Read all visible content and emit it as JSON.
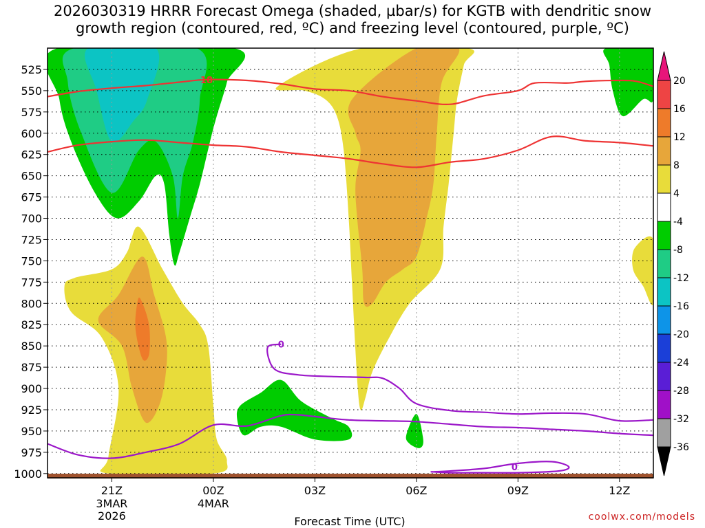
{
  "title": "2026030319 HRRR Forecast Omega (shaded, µbar/s) for KGTB with dendritic snow\ngrowth region (contoured, red, ºC) and freezing level (contoured, purple, ºC)",
  "source_text": "coolwx.com/models",
  "chart_data": {
    "type": "contour",
    "title": "2026030319 HRRR Forecast Omega (shaded, µbar/s) for KGTB with dendritic snow growth region (contoured, red, ºC) and freezing level (contoured, purple, ºC)",
    "xlabel": "Forecast Time (UTC)",
    "ylabel": "",
    "x_range_hours_from_21Z": [
      -1.9,
      16.0
    ],
    "ylim": [
      1005,
      500
    ],
    "y_ticks": [
      525,
      550,
      575,
      600,
      625,
      650,
      675,
      700,
      725,
      750,
      775,
      800,
      825,
      850,
      875,
      900,
      925,
      950,
      975,
      1000
    ],
    "x_ticks": [
      {
        "hour": 0,
        "label": "21Z",
        "sub1": "3MAR",
        "sub2": "2026"
      },
      {
        "hour": 3,
        "label": "00Z",
        "sub1": "4MAR",
        "sub2": ""
      },
      {
        "hour": 6,
        "label": "03Z",
        "sub1": "",
        "sub2": ""
      },
      {
        "hour": 9,
        "label": "06Z",
        "sub1": "",
        "sub2": ""
      },
      {
        "hour": 12,
        "label": "09Z",
        "sub1": "",
        "sub2": ""
      },
      {
        "hour": 15,
        "label": "12Z",
        "sub1": "",
        "sub2": ""
      }
    ],
    "colorbar": {
      "labels": [
        "20",
        "16",
        "12",
        "8",
        "4",
        "-4",
        "-8",
        "-12",
        "-16",
        "-20",
        "-24",
        "-28",
        "-32",
        "-36"
      ],
      "colors": [
        "#e8157a",
        "#ee4444",
        "#ee7b2a",
        "#e7a63a",
        "#e8dc3a",
        "#ffffff",
        "#00cc00",
        "#1fcc85",
        "#0cc4c4",
        "#0d94e8",
        "#1b3fd8",
        "#5a1ed6",
        "#a010c8",
        "#a0a0a0",
        "#000000"
      ]
    },
    "omega_regions": [
      {
        "name": "upper-ascent-region",
        "value": -8,
        "color": "#00cc00",
        "points": [
          [
            -1.6,
            500
          ],
          [
            3.6,
            500
          ],
          [
            3.4,
            540
          ],
          [
            3.1,
            580
          ],
          [
            2.9,
            610
          ],
          [
            2.6,
            660
          ],
          [
            2.3,
            700
          ],
          [
            2.0,
            740
          ],
          [
            1.85,
            755
          ],
          [
            1.7,
            720
          ],
          [
            1.55,
            660
          ],
          [
            1.3,
            650
          ],
          [
            0.8,
            680
          ],
          [
            0.15,
            700
          ],
          [
            -0.5,
            670
          ],
          [
            -1.2,
            610
          ],
          [
            -1.55,
            560
          ]
        ]
      },
      {
        "name": "upper-ascent-core",
        "value": -12,
        "color": "#1fcc85",
        "points": [
          [
            -1.1,
            500
          ],
          [
            2.5,
            500
          ],
          [
            2.6,
            560
          ],
          [
            2.4,
            610
          ],
          [
            2.1,
            650
          ],
          [
            1.95,
            700
          ],
          [
            1.8,
            650
          ],
          [
            1.3,
            610
          ],
          [
            0.8,
            620
          ],
          [
            0.0,
            670
          ],
          [
            -0.9,
            600
          ],
          [
            -1.3,
            540
          ]
        ]
      },
      {
        "name": "upper-ascent-max",
        "value": -16,
        "color": "#0cc4c4",
        "points": [
          [
            -0.7,
            500
          ],
          [
            1.3,
            500
          ],
          [
            1.05,
            560
          ],
          [
            0.65,
            585
          ],
          [
            0.0,
            610
          ],
          [
            -0.45,
            550
          ]
        ]
      },
      {
        "name": "lower-descent-region",
        "value": 4,
        "color": "#e8dc3a",
        "points": [
          [
            0.8,
            710
          ],
          [
            1.5,
            760
          ],
          [
            2.1,
            800
          ],
          [
            2.6,
            825
          ],
          [
            2.85,
            850
          ],
          [
            3.0,
            920
          ],
          [
            3.1,
            960
          ],
          [
            3.4,
            985
          ],
          [
            3.0,
            1000
          ],
          [
            -0.1,
            1000
          ],
          [
            -0.1,
            980
          ],
          [
            0.2,
            900
          ],
          [
            -0.3,
            840
          ],
          [
            -1.2,
            810
          ],
          [
            -1.4,
            780
          ],
          [
            -1.1,
            770
          ],
          [
            0.0,
            760
          ],
          [
            0.45,
            740
          ]
        ]
      },
      {
        "name": "lower-descent-core",
        "value": 8,
        "color": "#e7a63a",
        "points": [
          [
            0.9,
            745
          ],
          [
            1.25,
            790
          ],
          [
            1.6,
            840
          ],
          [
            1.6,
            880
          ],
          [
            1.4,
            920
          ],
          [
            1.0,
            940
          ],
          [
            0.6,
            900
          ],
          [
            0.3,
            850
          ],
          [
            -0.4,
            820
          ],
          [
            0.2,
            790
          ]
        ]
      },
      {
        "name": "lower-descent-max",
        "value": 12,
        "color": "#ee7b2a",
        "points": [
          [
            0.85,
            795
          ],
          [
            1.1,
            825
          ],
          [
            1.1,
            860
          ],
          [
            0.9,
            865
          ],
          [
            0.7,
            830
          ],
          [
            0.75,
            800
          ]
        ]
      },
      {
        "name": "mid-ascent-region",
        "value": -8,
        "color": "#00cc00",
        "points": [
          [
            3.8,
            920
          ],
          [
            4.4,
            905
          ],
          [
            5.0,
            890
          ],
          [
            5.6,
            915
          ],
          [
            6.5,
            935
          ],
          [
            7.0,
            945
          ],
          [
            7.0,
            960
          ],
          [
            6.0,
            960
          ],
          [
            5.0,
            945
          ],
          [
            4.4,
            945
          ],
          [
            3.9,
            955
          ],
          [
            3.7,
            935
          ]
        ]
      },
      {
        "name": "small-ascent-cell",
        "value": -8,
        "color": "#00cc00",
        "points": [
          [
            8.7,
            955
          ],
          [
            9.0,
            930
          ],
          [
            9.2,
            960
          ],
          [
            9.1,
            970
          ],
          [
            8.8,
            965
          ]
        ]
      },
      {
        "name": "late-descent-region",
        "value": 4,
        "color": "#e8dc3a",
        "points": [
          [
            7.4,
            500
          ],
          [
            10.5,
            500
          ],
          [
            10.4,
            520
          ],
          [
            10.2,
            560
          ],
          [
            10.1,
            600
          ],
          [
            9.95,
            660
          ],
          [
            9.8,
            710
          ],
          [
            9.7,
            760
          ],
          [
            8.8,
            800
          ],
          [
            8.2,
            840
          ],
          [
            7.7,
            880
          ],
          [
            7.5,
            910
          ],
          [
            7.35,
            925
          ],
          [
            7.25,
            890
          ],
          [
            7.1,
            780
          ],
          [
            7.0,
            700
          ],
          [
            6.85,
            620
          ],
          [
            6.65,
            580
          ],
          [
            6.3,
            560
          ],
          [
            5.7,
            550
          ],
          [
            4.9,
            545
          ]
        ]
      },
      {
        "name": "late-descent-core",
        "value": 8,
        "color": "#e7a63a",
        "points": [
          [
            9.0,
            500
          ],
          [
            10.25,
            500
          ],
          [
            9.75,
            540
          ],
          [
            9.6,
            600
          ],
          [
            9.5,
            660
          ],
          [
            9.3,
            700
          ],
          [
            9.0,
            745
          ],
          [
            8.6,
            760
          ],
          [
            8.1,
            775
          ],
          [
            7.7,
            800
          ],
          [
            7.45,
            800
          ],
          [
            7.4,
            760
          ],
          [
            7.25,
            700
          ],
          [
            7.2,
            660
          ],
          [
            7.35,
            620
          ],
          [
            7.2,
            600
          ],
          [
            7.1,
            560
          ]
        ]
      },
      {
        "name": "right-edge-ascent",
        "value": -8,
        "color": "#00cc00",
        "points": [
          [
            14.6,
            500
          ],
          [
            16.0,
            500
          ],
          [
            16.0,
            560
          ],
          [
            15.7,
            560
          ],
          [
            15.1,
            580
          ],
          [
            14.8,
            550
          ],
          [
            14.7,
            520
          ]
        ]
      },
      {
        "name": "right-edge-descent",
        "value": 4,
        "color": "#e8dc3a",
        "points": [
          [
            16.0,
            725
          ],
          [
            16.0,
            800
          ],
          [
            15.7,
            780
          ],
          [
            15.4,
            760
          ],
          [
            15.45,
            735
          ]
        ]
      }
    ],
    "isotherms": [
      {
        "name": "dendritic-upper",
        "color": "#ee3333",
        "label": "18",
        "x": [
          -1.9,
          -1.0,
          0.0,
          1.0,
          2.0,
          2.8,
          4.0,
          5.0,
          6.0,
          7.0,
          8.0,
          9.0,
          10.0,
          11.0,
          12.0,
          12.5,
          13.5,
          14.0,
          15.0,
          15.5,
          16.0
        ],
        "p": [
          557,
          551,
          547,
          544,
          540,
          537,
          538,
          542,
          548,
          550,
          557,
          562,
          566,
          556,
          550,
          541,
          541,
          539,
          538,
          539,
          545
        ]
      },
      {
        "name": "dendritic-lower",
        "color": "#ee3333",
        "label": "",
        "x": [
          -1.9,
          -1.0,
          0.0,
          1.0,
          2.0,
          3.0,
          4.0,
          5.0,
          6.0,
          7.0,
          8.0,
          9.0,
          10.0,
          11.0,
          12.0,
          13.0,
          14.0,
          15.0,
          16.0
        ],
        "p": [
          622,
          614,
          610,
          608,
          611,
          614,
          616,
          622,
          626,
          630,
          636,
          640,
          634,
          630,
          620,
          604,
          609,
          611,
          615
        ]
      },
      {
        "name": "freezing-level-main",
        "color": "#9b17c9",
        "label": "0",
        "x": [
          -1.9,
          -1.0,
          0.0,
          1.0,
          2.0,
          3.0,
          4.0,
          5.0,
          5.5,
          6.0,
          7.0,
          8.0,
          9.0,
          10.0,
          11.0,
          12.0,
          13.0,
          14.0,
          15.0,
          16.0
        ],
        "p": [
          965,
          978,
          982,
          975,
          965,
          943,
          944,
          932,
          931,
          933,
          937,
          938,
          939,
          942,
          945,
          946,
          948,
          950,
          953,
          955
        ]
      },
      {
        "name": "freezing-level-loop",
        "color": "#9b17c9",
        "label": "0",
        "x": [
          5.0,
          4.6,
          4.8,
          5.5,
          6.5,
          7.5,
          8.0,
          8.5,
          9.0,
          10.0,
          11.0,
          12.0,
          13.0,
          14.0,
          15.0,
          16.0
        ],
        "p": [
          848,
          852,
          877,
          884,
          886,
          887,
          888,
          900,
          918,
          926,
          928,
          930,
          929,
          930,
          938,
          937
        ]
      },
      {
        "name": "freezing-level-low",
        "color": "#9b17c9",
        "label": "0",
        "x": [
          9.5,
          10.0,
          11.0,
          12.0,
          13.0,
          13.5,
          13.2,
          12.0,
          11.0,
          10.0,
          9.5
        ],
        "p": [
          998,
          997,
          994,
          988,
          986,
          992,
          997,
          999,
          999,
          999,
          998
        ]
      }
    ],
    "terrain": {
      "color": "#a0522d",
      "surface_p": 1000
    }
  }
}
